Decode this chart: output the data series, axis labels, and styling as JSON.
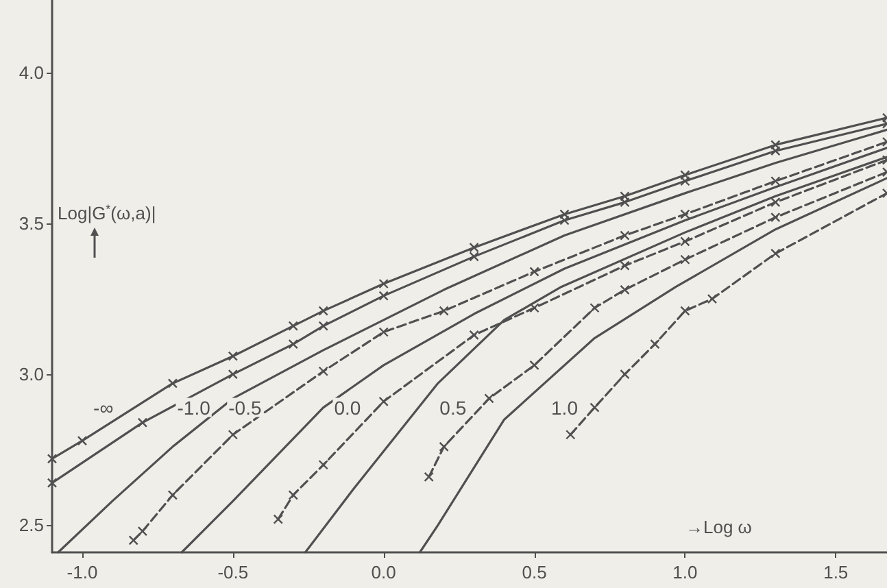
{
  "chart_data": {
    "type": "line",
    "xlabel": "→Log ω",
    "ylabel": "Log|G$^{*}$(ω,a)|",
    "xlim": [
      -1.1,
      1.67
    ],
    "ylim": [
      2.41,
      4.24
    ],
    "xticks": [
      {
        "value": -1.0,
        "label": "-1.0"
      },
      {
        "value": -0.5,
        "label": "-0.5"
      },
      {
        "value": 0.0,
        "label": "0.0"
      },
      {
        "value": 0.5,
        "label": "0.5"
      },
      {
        "value": 1.0,
        "label": "1.0"
      },
      {
        "value": 1.5,
        "label": "1.5"
      }
    ],
    "yticks": [
      {
        "value": 2.5,
        "label": "2.5"
      },
      {
        "value": 3.0,
        "label": "3.0"
      },
      {
        "value": 3.5,
        "label": "3.5"
      },
      {
        "value": 4.0,
        "label": "4.0"
      }
    ],
    "grid": false,
    "series": [
      {
        "color": "#505050",
        "line_style": "solid",
        "marker": "cross",
        "x": [
          -1.1,
          -1.0,
          -0.7,
          -0.5,
          -0.3,
          -0.2,
          0.0,
          0.3,
          0.6,
          0.8,
          1.0,
          1.3,
          1.67
        ],
        "values": [
          2.72,
          2.78,
          2.97,
          3.06,
          3.16,
          3.21,
          3.3,
          3.42,
          3.53,
          3.59,
          3.66,
          3.76,
          3.85
        ]
      },
      {
        "color": "#505050",
        "line_style": "solid",
        "marker": "cross",
        "x": [
          -1.1,
          -0.8,
          -0.5,
          -0.3,
          -0.2,
          0.0,
          0.3,
          0.6,
          0.8,
          1.0,
          1.3,
          1.67
        ],
        "values": [
          2.64,
          2.84,
          3.0,
          3.1,
          3.16,
          3.26,
          3.39,
          3.51,
          3.57,
          3.64,
          3.74,
          3.83
        ]
      },
      {
        "color": "#505050",
        "line_style": "solid",
        "marker": "none",
        "x": [
          -1.08,
          -0.9,
          -0.7,
          -0.5,
          -0.2,
          0.2,
          0.6,
          1.0,
          1.3,
          1.67
        ],
        "values": [
          2.41,
          2.58,
          2.76,
          2.92,
          3.08,
          3.28,
          3.46,
          3.6,
          3.7,
          3.81
        ]
      },
      {
        "color": "#505050",
        "line_style": "dashed",
        "marker": "cross",
        "x": [
          -0.83,
          -0.8,
          -0.7,
          -0.5,
          -0.2,
          0.0,
          0.2,
          0.5,
          0.8,
          1.0,
          1.3,
          1.67
        ],
        "values": [
          2.45,
          2.48,
          2.6,
          2.8,
          3.01,
          3.14,
          3.21,
          3.34,
          3.46,
          3.53,
          3.64,
          3.77
        ]
      },
      {
        "color": "#505050",
        "line_style": "solid",
        "marker": "none",
        "x": [
          -0.67,
          -0.5,
          -0.2,
          0.0,
          0.3,
          0.6,
          1.0,
          1.3,
          1.67
        ],
        "values": [
          2.41,
          2.58,
          2.89,
          3.03,
          3.2,
          3.35,
          3.51,
          3.62,
          3.75
        ]
      },
      {
        "color": "#505050",
        "line_style": "dashed",
        "marker": "cross",
        "x": [
          -0.35,
          -0.3,
          -0.2,
          0.0,
          0.3,
          0.5,
          0.8,
          1.0,
          1.3,
          1.67
        ],
        "values": [
          2.52,
          2.6,
          2.7,
          2.91,
          3.13,
          3.22,
          3.36,
          3.44,
          3.57,
          3.71
        ]
      },
      {
        "color": "#505050",
        "line_style": "solid",
        "marker": "none",
        "x": [
          -0.26,
          -0.1,
          0.18,
          0.4,
          0.59,
          1.0,
          1.3,
          1.67
        ],
        "values": [
          2.41,
          2.62,
          2.97,
          3.18,
          3.29,
          3.47,
          3.59,
          3.72
        ]
      },
      {
        "color": "#505050",
        "line_style": "dashed",
        "marker": "cross",
        "x": [
          0.15,
          0.2,
          0.35,
          0.5,
          0.7,
          0.8,
          1.0,
          1.3,
          1.67
        ],
        "values": [
          2.66,
          2.76,
          2.92,
          3.03,
          3.22,
          3.28,
          3.38,
          3.52,
          3.67
        ]
      },
      {
        "color": "#505050",
        "line_style": "solid",
        "marker": "none",
        "x": [
          0.12,
          0.18,
          0.4,
          0.7,
          0.97,
          1.3,
          1.67
        ],
        "values": [
          2.41,
          2.5,
          2.85,
          3.12,
          3.29,
          3.48,
          3.65
        ]
      },
      {
        "color": "#505050",
        "line_style": "dashed",
        "marker": "cross",
        "x": [
          0.62,
          0.7,
          0.8,
          0.9,
          1.0,
          1.09,
          1.3,
          1.67
        ],
        "values": [
          2.8,
          2.89,
          3.0,
          3.1,
          3.21,
          3.25,
          3.4,
          3.6
        ]
      }
    ],
    "annotations": [
      {
        "text": "-∞",
        "x": -0.93,
        "y": 2.89
      },
      {
        "text": "-1.0",
        "x": -0.63,
        "y": 2.89
      },
      {
        "text": "-0.5",
        "x": -0.46,
        "y": 2.89
      },
      {
        "text": "0.0",
        "x": -0.12,
        "y": 2.89
      },
      {
        "text": "0.5",
        "x": 0.23,
        "y": 2.89
      },
      {
        "text": "1.0",
        "x": 0.6,
        "y": 2.89
      }
    ]
  }
}
